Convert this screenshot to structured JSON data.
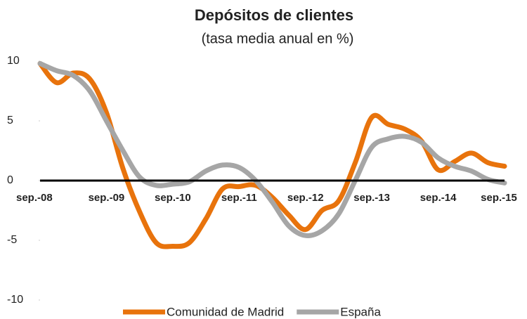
{
  "chart_data": {
    "type": "line",
    "title": "Depósitos de clientes",
    "subtitle": "(tasa media anual en %)",
    "categories": [
      "sep.-08",
      null,
      null,
      null,
      "sep.-09",
      null,
      null,
      null,
      "sep.-10",
      null,
      null,
      null,
      "sep.-11",
      null,
      null,
      null,
      "sep.-12",
      null,
      null,
      null,
      "sep.-13",
      null,
      null,
      null,
      "sep.-14",
      null,
      null,
      null,
      "sep.-15"
    ],
    "series": [
      {
        "name": "Comunidad de Madrid",
        "color": "#e8730c",
        "values": [
          9.8,
          8.2,
          9.0,
          8.5,
          5.7,
          1.0,
          -2.6,
          -5.2,
          -5.5,
          -5.2,
          -3.2,
          -0.7,
          -0.5,
          -0.4,
          -1.4,
          -2.9,
          -4.1,
          -2.5,
          -1.7,
          1.5,
          5.3,
          4.7,
          4.3,
          3.3,
          0.9,
          1.6,
          2.3,
          1.5,
          1.2
        ]
      },
      {
        "name": "España",
        "color": "#a6a6a6",
        "values": [
          9.8,
          9.2,
          8.8,
          7.5,
          5.0,
          2.5,
          0.3,
          -0.4,
          -0.3,
          -0.1,
          0.8,
          1.3,
          1.1,
          0.0,
          -1.8,
          -3.8,
          -4.6,
          -4.2,
          -2.8,
          0.0,
          2.8,
          3.5,
          3.7,
          3.2,
          1.9,
          1.2,
          0.8,
          0.1,
          -0.2
        ]
      }
    ],
    "ylim": [
      -10,
      10
    ],
    "yticks": [
      -10,
      -5,
      0,
      5,
      10
    ],
    "legend": "bottom"
  }
}
